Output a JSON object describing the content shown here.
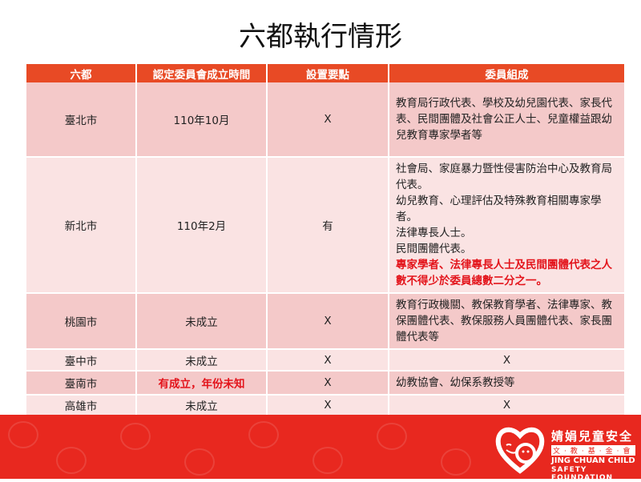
{
  "title": "六都執行情形",
  "table": {
    "headers": [
      "六都",
      "認定委員會成立時間",
      "設置要點",
      "委員組成"
    ],
    "rows": [
      {
        "city": "臺北市",
        "time": "110年10月",
        "rules": "X",
        "members": [
          "教育局行政代表、學校及幼兒園代表、家長代表、民間團體及社會公正人士、兒童權益跟幼兒教育專家學者等"
        ]
      },
      {
        "city": "新北市",
        "time": "110年2月",
        "rules": "有",
        "members": [
          "社會局、家庭暴力暨性侵害防治中心及教育局代表。",
          "幼兒教育、心理評估及特殊教育相關專家學者。",
          "法律專長人士。",
          "民間團體代表。"
        ],
        "members_note": "專家學者、法律專長人士及民間團體代表之人數不得少於委員總數二分之一。"
      },
      {
        "city": "桃園市",
        "time": "未成立",
        "rules": "X",
        "members": [
          "教育行政機關、教保教育學者、法律專家、教保團體代表、教保服務人員團體代表、家長團體代表等"
        ]
      },
      {
        "city": "臺中市",
        "time": "未成立",
        "rules": "X",
        "members": [
          "X"
        ]
      },
      {
        "city": "臺南市",
        "time": "有成立，年份未知",
        "time_highlight": true,
        "rules": "X",
        "members": [
          "幼教協會、幼保系教授等"
        ]
      },
      {
        "city": "高雄市",
        "time": "未成立",
        "rules": "X",
        "members": [
          "X"
        ]
      }
    ]
  },
  "footer": {
    "logo_cn": "婧娟兒童安全",
    "logo_cn2": "文‧教‧基‧金‧會",
    "logo_en1": "JING CHUAN CHILD",
    "logo_en2": "SAFETY FOUNDATION"
  },
  "colors": {
    "header": "#e84a25",
    "row_dark": "#f4c9c9",
    "row_light": "#fae3e3",
    "banner": "#e8281f",
    "highlight": "#e3141b"
  }
}
